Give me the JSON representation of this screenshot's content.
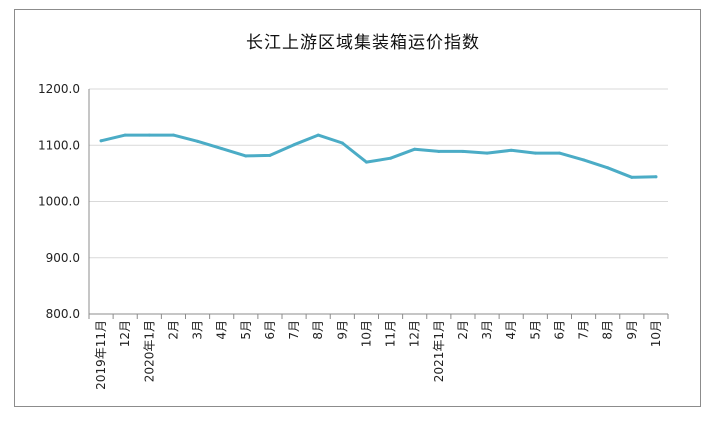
{
  "chart_data": {
    "type": "line",
    "title": "长江上游区域集装箱运价指数",
    "xlabel": "",
    "ylabel": "",
    "ylim": [
      800,
      1200
    ],
    "yticks": [
      "1200.0",
      "1100.0",
      "1000.0",
      "900.0",
      "800.0"
    ],
    "grid": true,
    "legend": "none",
    "categories": [
      "2019年11月",
      "12月",
      "2020年1月",
      "2月",
      "3月",
      "4月",
      "5月",
      "6月",
      "7月",
      "8月",
      "9月",
      "10月",
      "11月",
      "12月",
      "2021年1月",
      "2月",
      "3月",
      "4月",
      "5月",
      "6月",
      "7月",
      "8月",
      "9月",
      "10月"
    ],
    "series": [
      {
        "color": "#4bacc6",
        "values": [
          1108,
          1118,
          1118,
          1118,
          1107,
          1094,
          1081,
          1082,
          1101,
          1118,
          1104,
          1070,
          1077,
          1093,
          1089,
          1089,
          1086,
          1091,
          1086,
          1086,
          1074,
          1060,
          1043,
          1044
        ]
      }
    ]
  }
}
